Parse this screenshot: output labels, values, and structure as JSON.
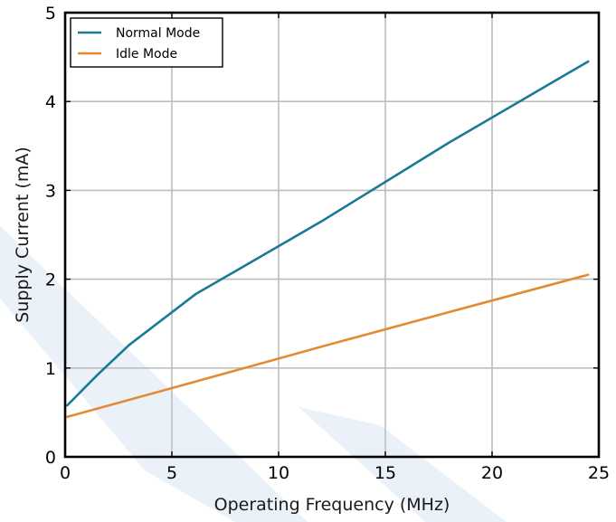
{
  "chart_data": {
    "type": "line",
    "title": "",
    "xlabel": "Operating Frequency (MHz)",
    "ylabel": "Supply Current (mA)",
    "xlim": [
      0,
      25
    ],
    "ylim": [
      0,
      5
    ],
    "xticks": [
      "0",
      "5",
      "10",
      "15",
      "20",
      "25"
    ],
    "yticks": [
      "0",
      "1",
      "2",
      "3",
      "4",
      "5"
    ],
    "grid": true,
    "legend_position": "top-left",
    "series": [
      {
        "name": "Normal Mode",
        "color": "#1a7a96",
        "x": [
          0.1,
          1.5,
          3.0,
          6.1,
          12.0,
          18.0,
          24.5
        ],
        "y": [
          0.58,
          0.92,
          1.26,
          1.83,
          2.65,
          3.54,
          4.45
        ]
      },
      {
        "name": "Idle Mode",
        "color": "#e38a33",
        "x": [
          0.1,
          6.0,
          12.0,
          18.0,
          24.5
        ],
        "y": [
          0.45,
          0.84,
          1.24,
          1.63,
          2.05
        ]
      }
    ]
  }
}
